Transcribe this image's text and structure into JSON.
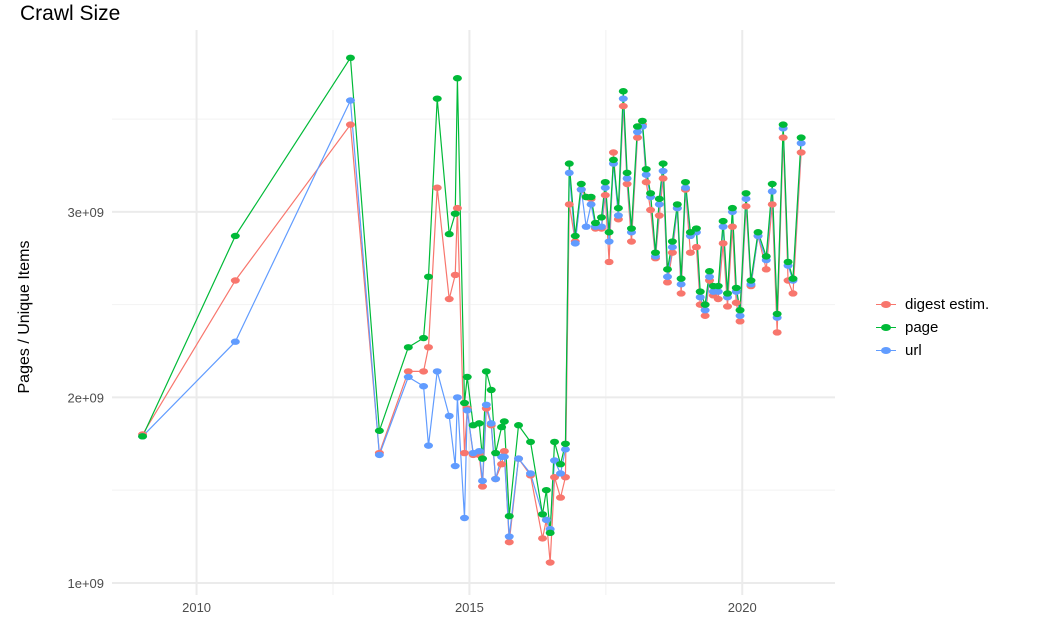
{
  "chart_data": {
    "type": "line",
    "title": "Crawl Size",
    "xlabel": "",
    "ylabel": "Pages / Unique Items",
    "xlim": [
      2008.45,
      2021.7
    ],
    "ylim": [
      935000000.0,
      3980000000.0
    ],
    "x_ticks": [
      2010,
      2015,
      2020
    ],
    "x_tick_labels": [
      "2010",
      "2015",
      "2020"
    ],
    "y_ticks": [
      1000000000.0,
      2000000000.0,
      3000000000.0
    ],
    "y_tick_labels": [
      "1e+09",
      "2e+09",
      "3e+09"
    ],
    "grid": true,
    "legend_position": "right",
    "markers": true,
    "x": [
      2009.01,
      2010.71,
      2012.82,
      2013.35,
      2013.88,
      2014.16,
      2014.25,
      2014.41,
      2014.63,
      2014.74,
      2014.78,
      2014.91,
      2014.96,
      2015.07,
      2015.18,
      2015.24,
      2015.31,
      2015.4,
      2015.48,
      2015.59,
      2015.64,
      2015.73,
      2015.9,
      2016.12,
      2016.34,
      2016.41,
      2016.48,
      2016.56,
      2016.67,
      2016.76,
      2016.83,
      2016.94,
      2017.05,
      2017.14,
      2017.23,
      2017.31,
      2017.42,
      2017.49,
      2017.56,
      2017.64,
      2017.73,
      2017.82,
      2017.89,
      2017.97,
      2018.08,
      2018.17,
      2018.24,
      2018.32,
      2018.41,
      2018.48,
      2018.55,
      2018.63,
      2018.72,
      2018.81,
      2018.88,
      2018.96,
      2019.05,
      2019.16,
      2019.23,
      2019.32,
      2019.4,
      2019.47,
      2019.56,
      2019.65,
      2019.73,
      2019.82,
      2019.89,
      2019.96,
      2020.07,
      2020.16,
      2020.29,
      2020.44,
      2020.55,
      2020.64,
      2020.75,
      2020.84,
      2020.93,
      2021.08
    ],
    "series": [
      {
        "name": "digest estim.",
        "color": "#F8766D",
        "values": [
          1800000000.0,
          2630000000.0,
          3470000000.0,
          1700000000.0,
          2140000000.0,
          2140000000.0,
          2270000000.0,
          3130000000.0,
          2530000000.0,
          2660000000.0,
          3020000000.0,
          1700000000.0,
          1940000000.0,
          1690000000.0,
          1690000000.0,
          1520000000.0,
          1940000000.0,
          1850000000.0,
          1560000000.0,
          1640000000.0,
          1710000000.0,
          1220000000.0,
          1670000000.0,
          1580000000.0,
          1240000000.0,
          1340000000.0,
          1110000000.0,
          1570000000.0,
          1460000000.0,
          1570000000.0,
          3040000000.0,
          2840000000.0,
          3120000000.0,
          3080000000.0,
          3070000000.0,
          2910000000.0,
          2910000000.0,
          3090000000.0,
          2730000000.0,
          3320000000.0,
          2960000000.0,
          3570000000.0,
          3150000000.0,
          2840000000.0,
          3400000000.0,
          3470000000.0,
          3160000000.0,
          3010000000.0,
          2750000000.0,
          2980000000.0,
          3180000000.0,
          2620000000.0,
          2780000000.0,
          3020000000.0,
          2560000000.0,
          3120000000.0,
          2780000000.0,
          2810000000.0,
          2500000000.0,
          2440000000.0,
          2630000000.0,
          2550000000.0,
          2530000000.0,
          2830000000.0,
          2490000000.0,
          2920000000.0,
          2510000000.0,
          2410000000.0,
          3030000000.0,
          2600000000.0,
          2870000000.0,
          2690000000.0,
          3040000000.0,
          2350000000.0,
          3400000000.0,
          2630000000.0,
          2560000000.0,
          3320000000.0
        ]
      },
      {
        "name": "page",
        "color": "#00BA38",
        "values": [
          1790000000.0,
          2870000000.0,
          3830000000.0,
          1820000000.0,
          2270000000.0,
          2320000000.0,
          2650000000.0,
          3610000000.0,
          2880000000.0,
          2990000000.0,
          3720000000.0,
          1970000000.0,
          2110000000.0,
          1850000000.0,
          1860000000.0,
          1670000000.0,
          2140000000.0,
          2040000000.0,
          1700000000.0,
          1840000000.0,
          1870000000.0,
          1360000000.0,
          1850000000.0,
          1760000000.0,
          1370000000.0,
          1500000000.0,
          1270000000.0,
          1760000000.0,
          1640000000.0,
          1750000000.0,
          3260000000.0,
          2870000000.0,
          3150000000.0,
          3080000000.0,
          3080000000.0,
          2940000000.0,
          2970000000.0,
          3160000000.0,
          2890000000.0,
          3280000000.0,
          3020000000.0,
          3650000000.0,
          3210000000.0,
          2910000000.0,
          3460000000.0,
          3490000000.0,
          3230000000.0,
          3100000000.0,
          2780000000.0,
          3070000000.0,
          3260000000.0,
          2690000000.0,
          2840000000.0,
          3040000000.0,
          2640000000.0,
          3160000000.0,
          2890000000.0,
          2910000000.0,
          2570000000.0,
          2500000000.0,
          2680000000.0,
          2600000000.0,
          2600000000.0,
          2950000000.0,
          2560000000.0,
          3020000000.0,
          2590000000.0,
          2470000000.0,
          3100000000.0,
          2630000000.0,
          2890000000.0,
          2760000000.0,
          3150000000.0,
          2450000000.0,
          3470000000.0,
          2730000000.0,
          2640000000.0,
          3400000000.0
        ]
      },
      {
        "name": "url",
        "color": "#619CFF",
        "values": [
          1790000000.0,
          2300000000.0,
          3600000000.0,
          1690000000.0,
          2110000000.0,
          2060000000.0,
          1740000000.0,
          2140000000.0,
          1900000000.0,
          1630000000.0,
          2000000000.0,
          1350000000.0,
          1930000000.0,
          1700000000.0,
          1710000000.0,
          1550000000.0,
          1960000000.0,
          1860000000.0,
          1560000000.0,
          1680000000.0,
          1680000000.0,
          1250000000.0,
          1670000000.0,
          1590000000.0,
          1370000000.0,
          1340000000.0,
          1290000000.0,
          1660000000.0,
          1590000000.0,
          1720000000.0,
          3210000000.0,
          2830000000.0,
          3120000000.0,
          2920000000.0,
          3040000000.0,
          2920000000.0,
          2920000000.0,
          3130000000.0,
          2840000000.0,
          3260000000.0,
          2980000000.0,
          3610000000.0,
          3180000000.0,
          2890000000.0,
          3430000000.0,
          3460000000.0,
          3200000000.0,
          3080000000.0,
          2760000000.0,
          3040000000.0,
          3220000000.0,
          2650000000.0,
          2810000000.0,
          3020000000.0,
          2610000000.0,
          3130000000.0,
          2870000000.0,
          2890000000.0,
          2540000000.0,
          2470000000.0,
          2650000000.0,
          2570000000.0,
          2570000000.0,
          2920000000.0,
          2540000000.0,
          3000000000.0,
          2570000000.0,
          2440000000.0,
          3070000000.0,
          2610000000.0,
          2870000000.0,
          2740000000.0,
          3110000000.0,
          2430000000.0,
          3450000000.0,
          2710000000.0,
          2630000000.0,
          3370000000.0
        ]
      }
    ]
  }
}
